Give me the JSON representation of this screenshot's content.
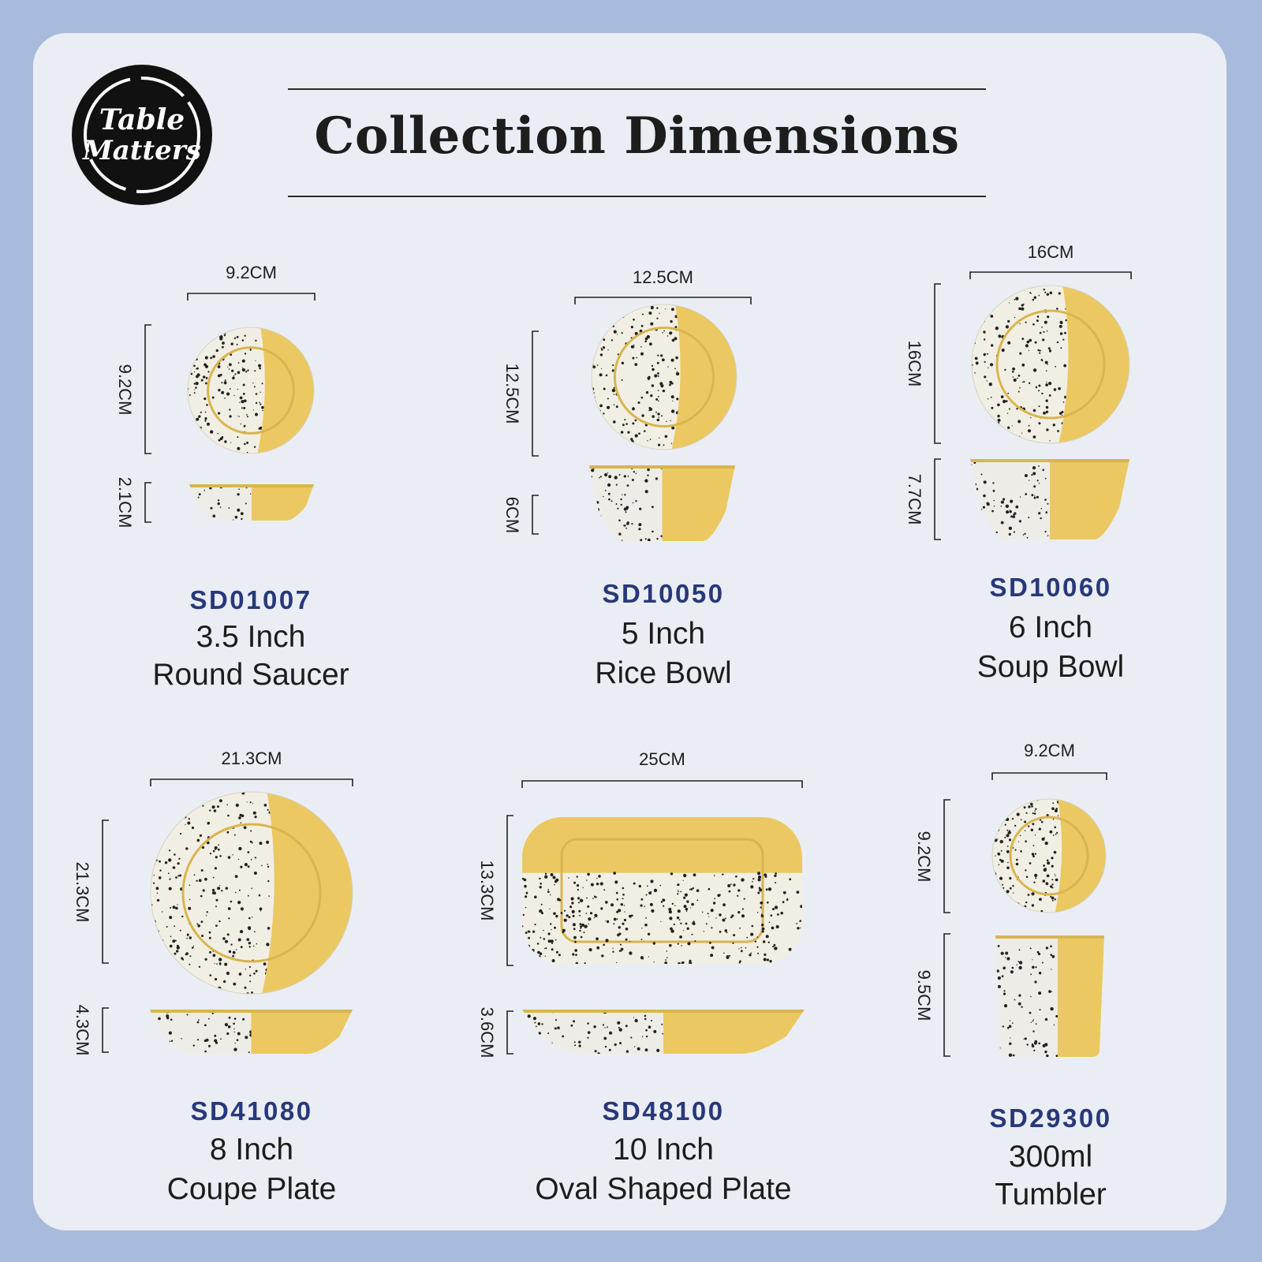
{
  "brand": {
    "logo_text": "Table Matters"
  },
  "header": {
    "title": "Collection Dimensions"
  },
  "colors": {
    "background": "#a8bbdc",
    "card": "#eaeef4",
    "code_text": "#28387a",
    "yellow": "#ebc862",
    "cream": "#f1efe4"
  },
  "products": [
    {
      "code": "SD01007",
      "size": "3.5 Inch",
      "name": "Round Saucer",
      "width": "9.2CM",
      "height": "9.2CM",
      "depth": "2.1CM"
    },
    {
      "code": "SD10050",
      "size": "5 Inch",
      "name": "Rice Bowl",
      "width": "12.5CM",
      "height": "12.5CM",
      "depth": "6CM"
    },
    {
      "code": "SD10060",
      "size": "6 Inch",
      "name": "Soup Bowl",
      "width": "16CM",
      "height": "16CM",
      "depth": "7.7CM"
    },
    {
      "code": "SD41080",
      "size": "8 Inch",
      "name": "Coupe Plate",
      "width": "21.3CM",
      "height": "21.3CM",
      "depth": "4.3CM"
    },
    {
      "code": "SD48100",
      "size": "10 Inch",
      "name": "Oval Shaped Plate",
      "width": "25CM",
      "height": "13.3CM",
      "depth": "3.6CM"
    },
    {
      "code": "SD29300",
      "size": "300ml",
      "name": "Tumbler",
      "width": "9.2CM",
      "height": "9.2CM",
      "depth": "9.5CM"
    }
  ]
}
